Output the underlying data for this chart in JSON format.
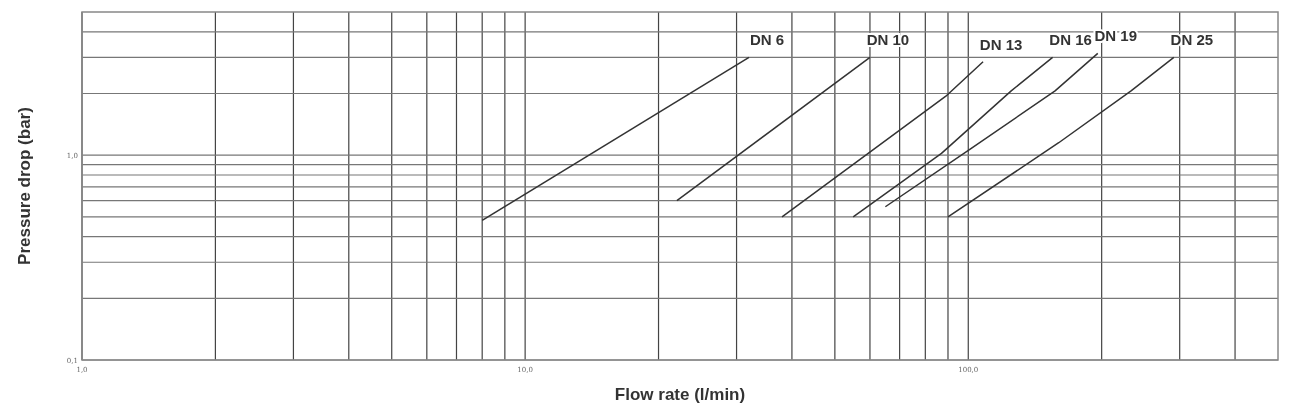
{
  "chart_data": {
    "type": "line",
    "xlabel": "Flow rate (l/min)",
    "ylabel": "Pressure drop (bar)",
    "log": "xy",
    "grid": true,
    "xlim": [
      1,
      500
    ],
    "ylim": [
      0.1,
      5
    ],
    "xticks": [
      {
        "value": 1,
        "label": "1,0"
      },
      {
        "value": 2,
        "label": null
      },
      {
        "value": 3,
        "label": null
      },
      {
        "value": 4,
        "label": null
      },
      {
        "value": 5,
        "label": null
      },
      {
        "value": 6,
        "label": null
      },
      {
        "value": 7,
        "label": null
      },
      {
        "value": 8,
        "label": null
      },
      {
        "value": 9,
        "label": null
      },
      {
        "value": 10,
        "label": "10,0"
      },
      {
        "value": 20,
        "label": null
      },
      {
        "value": 30,
        "label": null
      },
      {
        "value": 40,
        "label": null
      },
      {
        "value": 50,
        "label": null
      },
      {
        "value": 60,
        "label": null
      },
      {
        "value": 70,
        "label": null
      },
      {
        "value": 80,
        "label": null
      },
      {
        "value": 90,
        "label": null
      },
      {
        "value": 100,
        "label": "100,0"
      },
      {
        "value": 200,
        "label": null
      },
      {
        "value": 300,
        "label": null
      },
      {
        "value": 400,
        "label": null
      }
    ],
    "yticks": [
      {
        "value": 0.1,
        "label": "0,1"
      },
      {
        "value": 0.2,
        "label": null
      },
      {
        "value": 0.3,
        "label": null
      },
      {
        "value": 0.4,
        "label": null
      },
      {
        "value": 0.5,
        "label": null
      },
      {
        "value": 0.6,
        "label": null
      },
      {
        "value": 0.7,
        "label": null
      },
      {
        "value": 0.8,
        "label": null
      },
      {
        "value": 0.9,
        "label": null
      },
      {
        "value": 1,
        "label": "1,0"
      },
      {
        "value": 2,
        "label": null
      },
      {
        "value": 3,
        "label": null
      },
      {
        "value": 4,
        "label": null
      }
    ],
    "series": [
      {
        "name": "DN 6",
        "color": "#333333",
        "x": [
          8,
          32
        ],
        "values": [
          0.48,
          3
        ]
      },
      {
        "name": "DN 10",
        "color": "#333333",
        "x": [
          22,
          60
        ],
        "values": [
          0.6,
          3
        ]
      },
      {
        "name": "DN 13",
        "color": "#333333",
        "x": [
          38,
          89,
          108
        ],
        "values": [
          0.5,
          1.94,
          2.86
        ]
      },
      {
        "name": "DN 16",
        "color": "#333333",
        "x": [
          55,
          87,
          125,
          155
        ],
        "values": [
          0.5,
          1.02,
          2.06,
          3
        ]
      },
      {
        "name": "DN 19",
        "color": "#333333",
        "x": [
          65,
          101,
          157,
          196
        ],
        "values": [
          0.56,
          1.07,
          2.06,
          3.14
        ]
      },
      {
        "name": "DN 25",
        "color": "#333333",
        "x": [
          90,
          160,
          233,
          291
        ],
        "values": [
          0.5,
          1.15,
          2.06,
          3
        ]
      }
    ]
  }
}
